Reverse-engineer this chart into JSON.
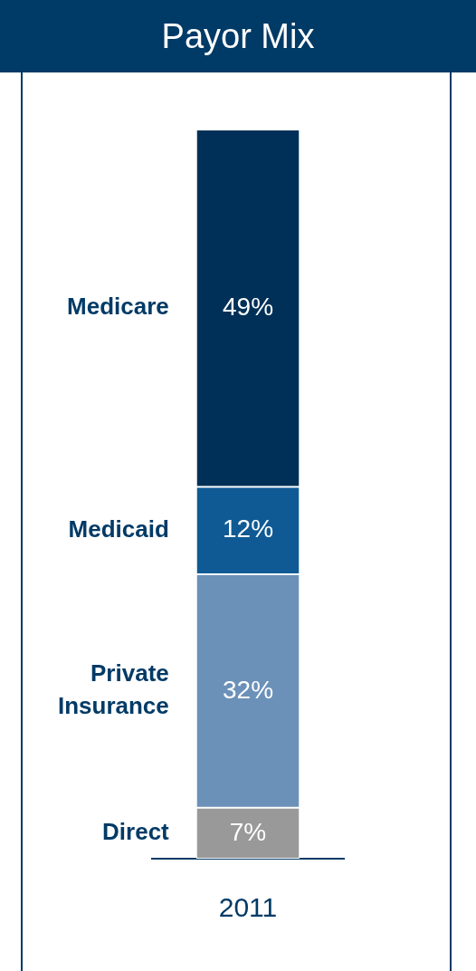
{
  "chart_data": {
    "type": "bar",
    "title": "Payor Mix",
    "categories": [
      "2011"
    ],
    "stacked": true,
    "legend": false,
    "grid": false,
    "series": [
      {
        "name": "Direct",
        "color": "#999999",
        "values": [
          7
        ],
        "value_labels": [
          "7%"
        ]
      },
      {
        "name": "Private Insurance",
        "color": "#6b91b9",
        "values": [
          32
        ],
        "value_labels": [
          "32%"
        ]
      },
      {
        "name": "Medicaid",
        "color": "#0f5a94",
        "values": [
          12
        ],
        "value_labels": [
          "12%"
        ]
      },
      {
        "name": "Medicare",
        "color": "#003057",
        "values": [
          49
        ],
        "value_labels": [
          "49%"
        ]
      }
    ]
  }
}
